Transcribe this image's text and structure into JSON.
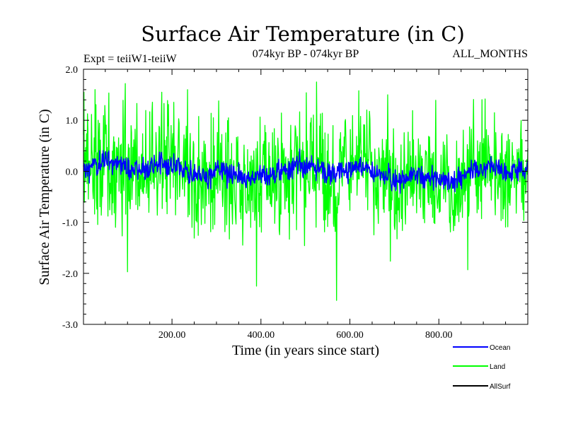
{
  "chart_data": {
    "type": "line",
    "title": "Surface Air Temperature (in C)",
    "subtitle_left": "Expt = teiiW1-teiiW",
    "subtitle_center": "074kyr BP - 074kyr BP",
    "subtitle_right": "ALL_MONTHS",
    "xlabel": "Time (in years since start)",
    "ylabel": "Surface Air Temperature (in C)",
    "xlim": [
      1,
      1000
    ],
    "ylim": [
      -3.0,
      2.0
    ],
    "x_ticks": [
      200,
      400,
      600,
      800
    ],
    "x_tick_labels": [
      "200.00",
      "400.00",
      "600.00",
      "800.00"
    ],
    "y_ticks": [
      -3,
      -2,
      -1,
      0,
      1,
      2
    ],
    "y_tick_labels": [
      "-3.0",
      "-2.0",
      "-1.0",
      "0.0",
      "1.0",
      "2.0"
    ],
    "legend_placement": "bottom-right, below plot",
    "grid": false,
    "series": [
      {
        "name": "Ocean",
        "color": "#0000ff",
        "x_start": 1,
        "x_step": 1,
        "count": 1000,
        "approx_range": [
          -0.75,
          0.55
        ],
        "typical_amplitude": 0.2
      },
      {
        "name": "Land",
        "color": "#00ff00",
        "x_start": 1,
        "x_step": 1,
        "count": 1000,
        "approx_range": [
          -2.55,
          1.75
        ],
        "typical_amplitude": 0.55,
        "notable_minima": [
          {
            "x": 100,
            "y": -1.97
          },
          {
            "x": 390,
            "y": -2.25
          },
          {
            "x": 570,
            "y": -2.53
          },
          {
            "x": 865,
            "y": -1.93
          }
        ],
        "notable_maxima": [
          {
            "x": 2,
            "y": 1.55
          },
          {
            "x": 95,
            "y": 1.72
          },
          {
            "x": 235,
            "y": 1.6
          },
          {
            "x": 525,
            "y": 1.75
          },
          {
            "x": 685,
            "y": 1.5
          }
        ]
      },
      {
        "name": "AllSurf",
        "color": "#000000",
        "drawn_in_plot": false
      }
    ]
  }
}
